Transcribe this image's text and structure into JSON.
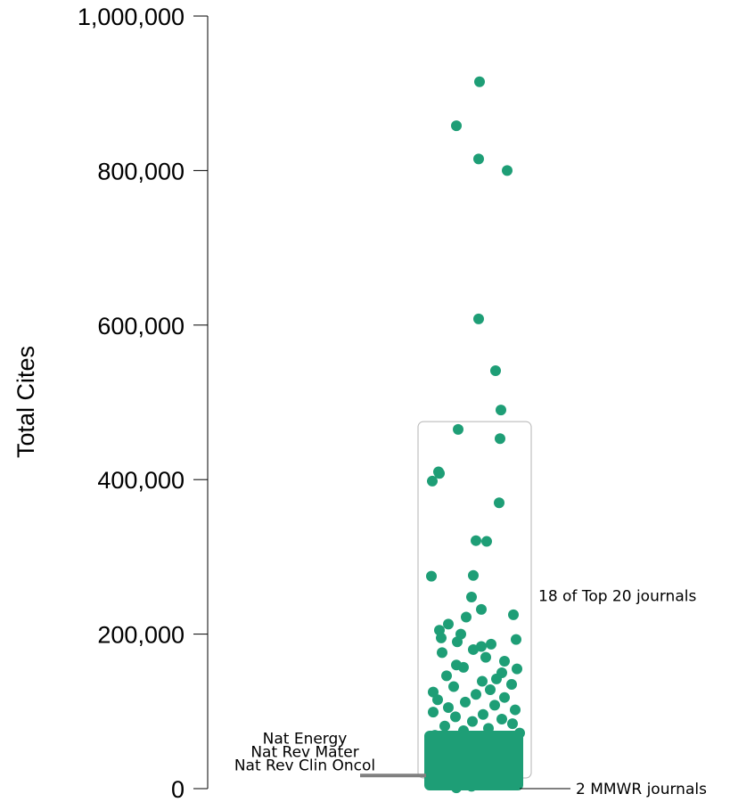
{
  "chart_data": {
    "type": "scatter",
    "ylabel": "Total Cites",
    "ylim": [
      0,
      1000000
    ],
    "y_ticks": [
      {
        "value": 0,
        "label": "0"
      },
      {
        "value": 200000,
        "label": "200,000"
      },
      {
        "value": 400000,
        "label": "400,000"
      },
      {
        "value": 600000,
        "label": "600,000"
      },
      {
        "value": 800000,
        "label": "800,000"
      },
      {
        "value": 1000000,
        "label": "1,000,000"
      }
    ],
    "point_color": "#1e9e76",
    "box_color": "#b3b3b3",
    "marker_color": "#808080",
    "box_range": [
      0,
      475000
    ],
    "series": [
      {
        "values": [
          915000,
          858000,
          815000,
          800000,
          608000,
          541000,
          490000,
          465000,
          453000,
          410000,
          408000,
          398000,
          370000,
          321000,
          320000,
          276000,
          275000,
          248000,
          232000,
          225000,
          222000,
          213000,
          205000,
          200000,
          195000,
          193000,
          190000,
          187000,
          184000,
          180000,
          176000,
          170000,
          165000,
          160000,
          157000,
          155000,
          150000,
          146000,
          142000,
          139000,
          135000,
          132000,
          128000,
          125000,
          122000,
          118000,
          115000,
          112000,
          108000,
          105000,
          102000,
          99000,
          96000,
          93000,
          90000,
          87000,
          84000,
          81000,
          78000,
          75000,
          72000,
          69000,
          66000,
          63000,
          60000,
          57000,
          54000,
          51000,
          48000,
          45000,
          42000,
          39000,
          36000,
          33000,
          30000,
          27000,
          24000,
          21000,
          18000,
          15000,
          12000,
          9000,
          6000,
          3000,
          1000
        ]
      }
    ],
    "annotations": [
      {
        "text": "18 of Top 20 journals"
      },
      {
        "text": "2 MMWR journals",
        "value": 0
      },
      {
        "text": "Nat Energy"
      },
      {
        "text": "Nat Rev Mater"
      },
      {
        "text": "Nat Rev Clin Oncol",
        "value": 17000
      }
    ]
  }
}
